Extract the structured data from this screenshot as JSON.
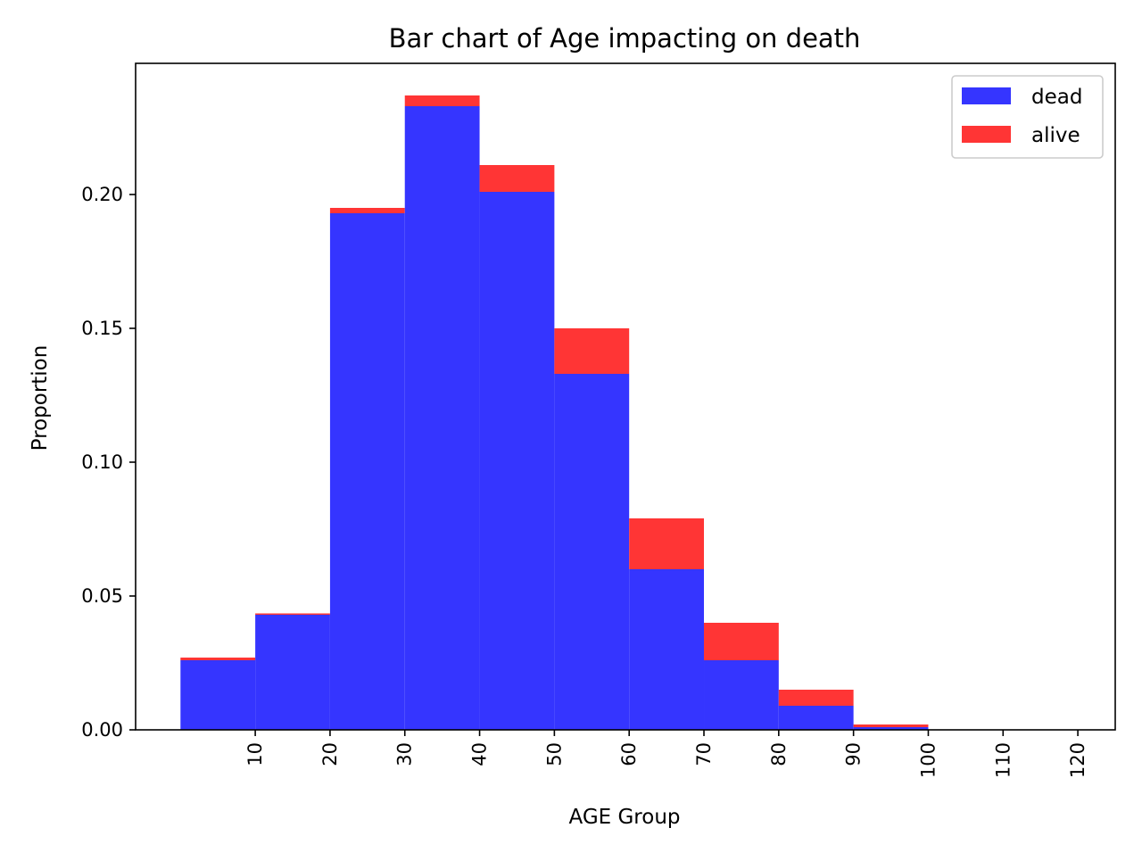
{
  "chart_data": {
    "type": "bar",
    "stacked": true,
    "title": "Bar chart of Age impacting on death",
    "xlabel": "AGE Group",
    "ylabel": "Proportion",
    "bin_width": 10,
    "x_bin_starts": [
      0,
      10,
      20,
      30,
      40,
      50,
      60,
      70,
      80,
      90
    ],
    "xlim": [
      -6,
      125
    ],
    "ylim": [
      0,
      0.249
    ],
    "x_ticks": [
      10,
      20,
      30,
      40,
      50,
      60,
      70,
      80,
      90,
      100,
      110,
      120
    ],
    "x_tick_labels": [
      "10",
      "20",
      "30",
      "40",
      "50",
      "60",
      "70",
      "80",
      "90",
      "100",
      "110",
      "120"
    ],
    "y_ticks": [
      0,
      0.05,
      0.1,
      0.15,
      0.2
    ],
    "y_tick_labels": [
      "0.00",
      "0.05",
      "0.10",
      "0.15",
      "0.20"
    ],
    "grid": false,
    "legend_position": "top-right",
    "series": [
      {
        "name": "dead",
        "color": "#3535ff",
        "values": [
          0.026,
          0.043,
          0.193,
          0.233,
          0.201,
          0.133,
          0.06,
          0.026,
          0.009,
          0.001
        ]
      },
      {
        "name": "alive",
        "color": "#ff3535",
        "values": [
          0.001,
          0.0005,
          0.002,
          0.004,
          0.01,
          0.017,
          0.019,
          0.014,
          0.006,
          0.001
        ]
      }
    ]
  }
}
